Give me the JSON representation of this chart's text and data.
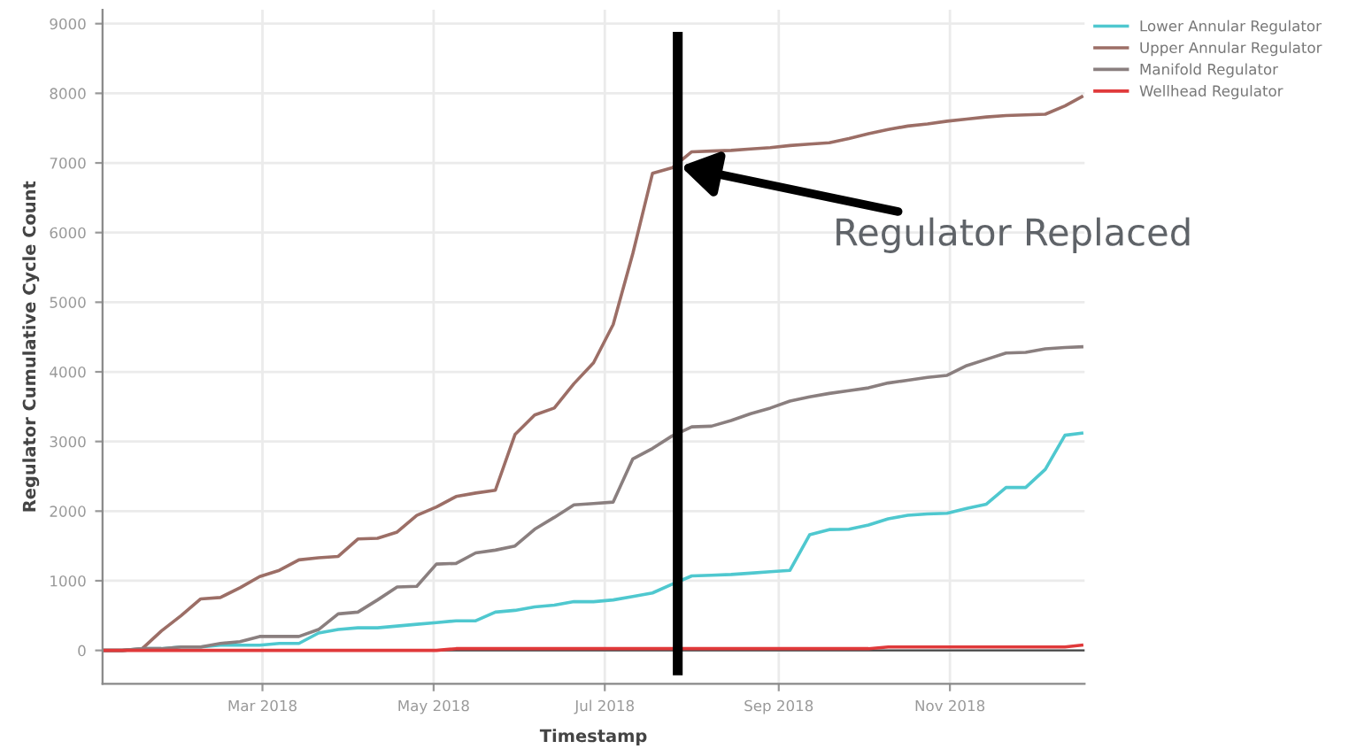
{
  "chart_data": {
    "type": "line",
    "xlabel": "Timestamp",
    "ylabel": "Regulator Cumulative Cycle Count",
    "x": [
      "2018-01-03",
      "2018-01-10",
      "2018-01-17",
      "2018-01-24",
      "2018-01-31",
      "2018-02-07",
      "2018-02-14",
      "2018-02-21",
      "2018-02-28",
      "2018-03-07",
      "2018-03-14",
      "2018-03-21",
      "2018-03-28",
      "2018-04-04",
      "2018-04-11",
      "2018-04-18",
      "2018-04-25",
      "2018-05-02",
      "2018-05-09",
      "2018-05-16",
      "2018-05-23",
      "2018-05-30",
      "2018-06-06",
      "2018-06-13",
      "2018-06-20",
      "2018-06-27",
      "2018-07-04",
      "2018-07-11",
      "2018-07-18",
      "2018-07-25",
      "2018-08-01",
      "2018-08-08",
      "2018-08-15",
      "2018-08-22",
      "2018-08-29",
      "2018-09-05",
      "2018-09-12",
      "2018-09-19",
      "2018-09-26",
      "2018-10-03",
      "2018-10-10",
      "2018-10-17",
      "2018-10-24",
      "2018-10-31",
      "2018-11-07",
      "2018-11-14",
      "2018-11-21",
      "2018-11-28",
      "2018-12-05",
      "2018-12-12",
      "2018-12-18"
    ],
    "series": [
      {
        "name": "Lower Annular Regulator",
        "color": "#4fc8cf",
        "values": [
          0,
          0,
          25,
          25,
          50,
          50,
          75,
          75,
          75,
          100,
          100,
          250,
          300,
          325,
          325,
          350,
          375,
          400,
          425,
          425,
          550,
          575,
          625,
          650,
          700,
          700,
          725,
          775,
          825,
          950,
          1070,
          1080,
          1090,
          1110,
          1130,
          1150,
          1660,
          1735,
          1740,
          1800,
          1890,
          1940,
          1960,
          1970,
          2040,
          2100,
          2340,
          2340,
          2600,
          3090,
          3120
        ]
      },
      {
        "name": "Upper Annular Regulator",
        "color": "#9c6e66",
        "values": [
          0,
          0,
          20,
          280,
          500,
          740,
          760,
          900,
          1060,
          1150,
          1300,
          1330,
          1350,
          1600,
          1610,
          1700,
          1940,
          2060,
          2210,
          2260,
          2300,
          3100,
          3380,
          3480,
          3830,
          4130,
          4680,
          5700,
          6850,
          6930,
          7160,
          7170,
          7180,
          7200,
          7220,
          7250,
          7270,
          7290,
          7350,
          7420,
          7480,
          7530,
          7560,
          7600,
          7630,
          7660,
          7680,
          7690,
          7700,
          7820,
          7950
        ]
      },
      {
        "name": "Manifold Regulator",
        "color": "#8a7f7f",
        "values": [
          0,
          0,
          25,
          25,
          50,
          50,
          100,
          125,
          200,
          200,
          200,
          300,
          525,
          550,
          725,
          910,
          920,
          1240,
          1250,
          1400,
          1440,
          1500,
          1740,
          1910,
          2090,
          2110,
          2130,
          2750,
          2900,
          3080,
          3210,
          3220,
          3300,
          3400,
          3480,
          3580,
          3640,
          3690,
          3730,
          3770,
          3840,
          3880,
          3920,
          3950,
          4090,
          4180,
          4270,
          4280,
          4330,
          4350,
          4360
        ]
      },
      {
        "name": "Wellhead Regulator",
        "color": "#e0393a",
        "values": [
          0,
          0,
          0,
          0,
          0,
          0,
          0,
          0,
          0,
          0,
          0,
          0,
          0,
          0,
          0,
          0,
          0,
          0,
          25,
          25,
          25,
          25,
          25,
          25,
          25,
          25,
          25,
          25,
          25,
          25,
          25,
          25,
          25,
          25,
          25,
          25,
          25,
          25,
          25,
          25,
          50,
          50,
          50,
          50,
          50,
          50,
          50,
          50,
          50,
          50,
          75
        ]
      }
    ],
    "xlim": [
      "2018-01-03",
      "2018-12-19"
    ],
    "xticks": [
      {
        "value": "2018-03-01",
        "label": "Mar 2018"
      },
      {
        "value": "2018-05-01",
        "label": "May 2018"
      },
      {
        "value": "2018-07-01",
        "label": "Jul 2018"
      },
      {
        "value": "2018-09-01",
        "label": "Sep 2018"
      },
      {
        "value": "2018-11-01",
        "label": "Nov 2018"
      }
    ],
    "ylim": [
      -480,
      9200
    ],
    "yticks": [
      0,
      1000,
      2000,
      3000,
      4000,
      5000,
      6000,
      7000,
      8000,
      9000
    ],
    "grid": true,
    "legend": "top right",
    "marker": "none",
    "line_style": "solid",
    "ref_lines": [
      {
        "axis": "x",
        "value": "2018-07-27",
        "color": "#000000"
      }
    ],
    "annotations": [
      {
        "text": "Regulator Replaced",
        "x": "2018-07-28",
        "y": 6950
      }
    ]
  }
}
